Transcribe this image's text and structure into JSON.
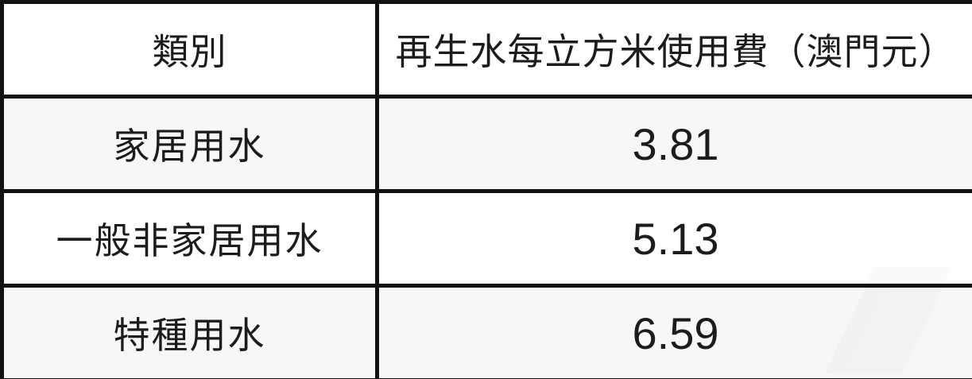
{
  "table": {
    "headers": {
      "category": "類別",
      "fee": "再生水每立方米使用費（澳門元）"
    },
    "rows": [
      {
        "category": "家居用水",
        "fee": "3.81"
      },
      {
        "category": "一般非家居用水",
        "fee": "5.13"
      },
      {
        "category": "特種用水",
        "fee": "6.59"
      }
    ]
  },
  "chart_data": {
    "type": "table",
    "columns": [
      "類別",
      "再生水每立方米使用費（澳門元）"
    ],
    "rows": [
      [
        "家居用水",
        3.81
      ],
      [
        "一般非家居用水",
        5.13
      ],
      [
        "特種用水",
        6.59
      ]
    ]
  },
  "colors": {
    "border-color": "#111111",
    "row-alt": "#f7f7f7",
    "row-bg": "#ffffff",
    "text-color": "#1c1c1c"
  }
}
